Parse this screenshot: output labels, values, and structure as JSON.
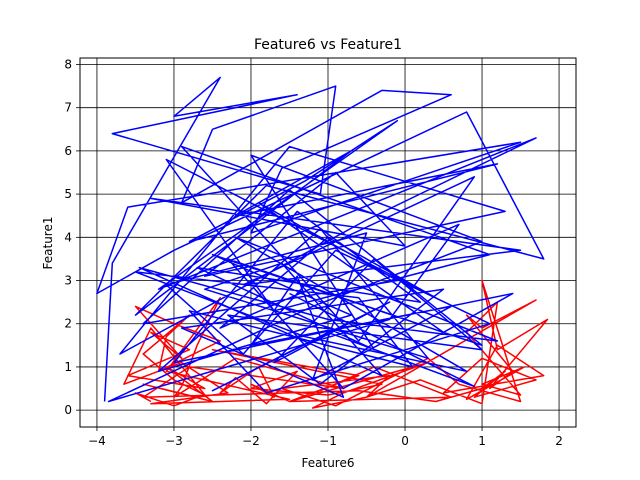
{
  "chart_data": {
    "type": "line",
    "title": "Feature6 vs Feature1",
    "xlabel": "Feature6",
    "ylabel": "Feature1",
    "xlim": [
      -4.22,
      2.22
    ],
    "ylim": [
      -0.39,
      8.15
    ],
    "xticks": [
      -4,
      -3,
      -2,
      -1,
      0,
      1,
      2
    ],
    "yticks": [
      0,
      1,
      2,
      3,
      4,
      5,
      6,
      7,
      8
    ],
    "grid": true,
    "legend": "none",
    "series": [
      {
        "name": "red series",
        "color": "#ff0000",
        "x": [
          -3.3,
          -3.5,
          -3.0,
          -2.7,
          -3.4,
          -2.5,
          -3.1,
          -2.6,
          -3.6,
          -2.8,
          -3.3,
          -2.9,
          -3.5,
          -3.0,
          -2.4,
          -3.2,
          -3.1,
          -2.8,
          -3.4,
          -3.0,
          -2.6,
          -3.3,
          -3.65,
          -2.9,
          -2.3,
          -3.3,
          -1.5,
          -3.1,
          -2.4,
          -2.7,
          -2.9,
          -3.0,
          -2.2,
          -0.8,
          -2.8,
          -3.4,
          -0.6,
          0.4,
          1.0,
          1.3,
          0.9,
          1.7,
          1.0,
          0.5,
          1.8,
          1.2,
          0.8,
          1.55,
          1.0,
          1.5,
          0.8,
          1.2,
          1.0,
          0.2,
          -0.5,
          1.7,
          1.0,
          0.8,
          1.4,
          1.1,
          1.85,
          1.2,
          1.0,
          1.5,
          0.7,
          0.3,
          -0.9,
          -1.6,
          -0.2,
          -0.5,
          -1.2,
          -0.8,
          0.3,
          -1.5,
          -2.0,
          -1.7,
          -1.9,
          -2.4,
          -2.2,
          -1.8,
          -1.4,
          -2.0,
          -1.0,
          -0.3,
          -2.5,
          -0.6,
          -1.5,
          0.6,
          -0.4,
          -1.1
        ],
        "y": [
          0.2,
          0.4,
          0.1,
          0.3,
          0.6,
          0.2,
          1.0,
          0.5,
          0.8,
          1.4,
          1.8,
          1.2,
          2.4,
          2.0,
          1.6,
          0.9,
          1.7,
          2.2,
          1.3,
          0.7,
          0.35,
          1.9,
          0.6,
          1.1,
          0.4,
          0.15,
          0.25,
          0.9,
          2.6,
          1.5,
          0.55,
          0.3,
          1.2,
          0.5,
          1.0,
          0.3,
          0.45,
          0.2,
          0.5,
          0.9,
          0.3,
          0.7,
          1.2,
          0.4,
          0.8,
          1.5,
          0.25,
          1.0,
          0.6,
          0.35,
          1.8,
          2.5,
          0.15,
          0.7,
          0.3,
          2.55,
          1.9,
          2.2,
          0.9,
          0.5,
          2.1,
          1.4,
          3.0,
          0.2,
          0.6,
          1.2,
          0.1,
          0.5,
          0.8,
          0.3,
          0.05,
          0.4,
          1.1,
          0.2,
          0.6,
          0.3,
          1.0,
          0.4,
          0.75,
          0.15,
          0.9,
          0.5,
          0.35,
          0.6,
          1.4,
          0.8,
          0.2,
          0.3,
          1.0,
          0.45
        ]
      },
      {
        "name": "blue series",
        "color": "#0000ff",
        "x": [
          -3.9,
          -3.8,
          -2.4,
          -3.0,
          -1.4,
          -3.8,
          -1.1,
          -0.9,
          -2.5,
          -2.9,
          -0.3,
          0.6,
          -1.6,
          -2.0,
          1.5,
          -3.6,
          -4.0,
          -3.0,
          0.8,
          1.8,
          -1.8,
          -3.5,
          -0.7,
          -2.2,
          1.2,
          -2.8,
          -1.3,
          -0.1,
          -3.2,
          1.7,
          -0.5,
          -3.7,
          -1.5,
          1.3,
          -2.6,
          -0.9,
          0.0,
          -3.3,
          1.5,
          -2.1,
          0.9,
          -0.6,
          -2.9,
          1.1,
          -1.7,
          -3.1,
          0.4,
          -1.0,
          -2.4,
          0.7,
          -0.2,
          -3.85,
          -1.2,
          1.0,
          -2.0,
          -0.4,
          -2.7,
          0.2,
          -1.4,
          -3.0,
          1.4,
          -0.8,
          -2.3,
          0.5,
          -1.9,
          -0.1,
          -3.4,
          -1.5,
          1.0,
          -2.5,
          -0.7,
          -3.2,
          -1.1,
          0.3,
          -2.6,
          -1.6,
          -0.3,
          -3.45,
          -1.0,
          1.2,
          -2.2,
          0.8,
          -1.3,
          -3.5,
          -0.6,
          0.1,
          -2.8,
          -1.8,
          1.1,
          -0.9,
          -2.1,
          -3.1,
          -0.5,
          -1.2,
          0.6,
          -2.0,
          -1.4,
          -0.8,
          -2.9,
          0.5,
          -1.1,
          -2.3,
          1.0,
          -0.4,
          -1.7,
          -0.2,
          -2.5,
          -1.0,
          0.9,
          -1.5
        ],
        "y": [
          0.2,
          3.4,
          7.7,
          6.8,
          7.3,
          6.4,
          5.0,
          7.5,
          6.5,
          4.8,
          7.4,
          7.3,
          5.6,
          4.1,
          6.2,
          4.7,
          2.7,
          3.7,
          6.9,
          3.5,
          5.2,
          2.2,
          6.0,
          4.5,
          5.7,
          3.9,
          5.3,
          6.7,
          2.8,
          6.3,
          4.4,
          1.3,
          6.1,
          4.6,
          3.1,
          5.5,
          3.8,
          4.9,
          3.7,
          2.9,
          5.4,
          1.6,
          6.1,
          3.6,
          2.3,
          5.8,
          2.6,
          4.0,
          1.9,
          4.3,
          2.1,
          0.2,
          2.4,
          3.9,
          5.9,
          1.4,
          3.3,
          2.5,
          4.6,
          1.1,
          2.7,
          0.5,
          3.5,
          1.8,
          4.8,
          3.0,
          2.0,
          5.1,
          1.5,
          3.6,
          2.2,
          0.9,
          4.2,
          1.2,
          2.8,
          3.4,
          0.8,
          3.3,
          2.1,
          1.6,
          4.0,
          0.9,
          1.7,
          3.2,
          2.6,
          1.0,
          2.3,
          0.4,
          2.0,
          3.7,
          1.3,
          2.9,
          4.1,
          0.7,
          2.4,
          1.5,
          3.1,
          0.3,
          1.9,
          2.8,
          0.6,
          2.2,
          1.4,
          3.5,
          1.1,
          2.5,
          0.45,
          1.8,
          0.55,
          2.7
        ]
      }
    ]
  }
}
